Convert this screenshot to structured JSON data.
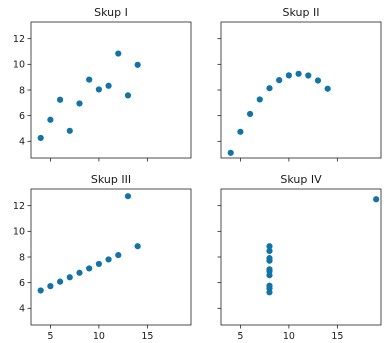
{
  "marker_color": "#1273a6",
  "chart_data": [
    {
      "type": "scatter",
      "title": "Skup I",
      "xlim": [
        3,
        19.5
      ],
      "ylim": [
        2.7,
        13.3
      ],
      "xticks": [
        5,
        10,
        15
      ],
      "yticks": [
        4,
        6,
        8,
        10,
        12
      ],
      "x": [
        10,
        8,
        13,
        9,
        11,
        14,
        6,
        4,
        12,
        7,
        5
      ],
      "y": [
        8.04,
        6.95,
        7.58,
        8.81,
        8.33,
        9.96,
        7.24,
        4.26,
        10.84,
        4.82,
        5.68
      ]
    },
    {
      "type": "scatter",
      "title": "Skup II",
      "xlim": [
        3,
        19.5
      ],
      "ylim": [
        2.7,
        13.3
      ],
      "xticks": [
        5,
        10,
        15
      ],
      "yticks": [
        4,
        6,
        8,
        10,
        12
      ],
      "x": [
        10,
        8,
        13,
        9,
        11,
        14,
        6,
        4,
        12,
        7,
        5
      ],
      "y": [
        9.14,
        8.14,
        8.74,
        8.77,
        9.26,
        8.1,
        6.13,
        3.1,
        9.13,
        7.26,
        4.74
      ]
    },
    {
      "type": "scatter",
      "title": "Skup III",
      "xlim": [
        3,
        19.5
      ],
      "ylim": [
        2.7,
        13.3
      ],
      "xticks": [
        5,
        10,
        15
      ],
      "yticks": [
        4,
        6,
        8,
        10,
        12
      ],
      "x": [
        10,
        8,
        13,
        9,
        11,
        14,
        6,
        4,
        12,
        7,
        5
      ],
      "y": [
        7.46,
        6.77,
        12.74,
        7.11,
        7.81,
        8.84,
        6.08,
        5.39,
        8.15,
        6.42,
        5.73
      ]
    },
    {
      "type": "scatter",
      "title": "Skup IV",
      "xlim": [
        3,
        19.5
      ],
      "ylim": [
        2.7,
        13.3
      ],
      "xticks": [
        5,
        10,
        15
      ],
      "yticks": [
        4,
        6,
        8,
        10,
        12
      ],
      "x": [
        8,
        8,
        8,
        8,
        8,
        8,
        8,
        19,
        8,
        8,
        8
      ],
      "y": [
        6.58,
        5.76,
        7.71,
        8.84,
        8.47,
        7.04,
        5.25,
        12.5,
        5.56,
        7.91,
        6.89
      ]
    }
  ]
}
